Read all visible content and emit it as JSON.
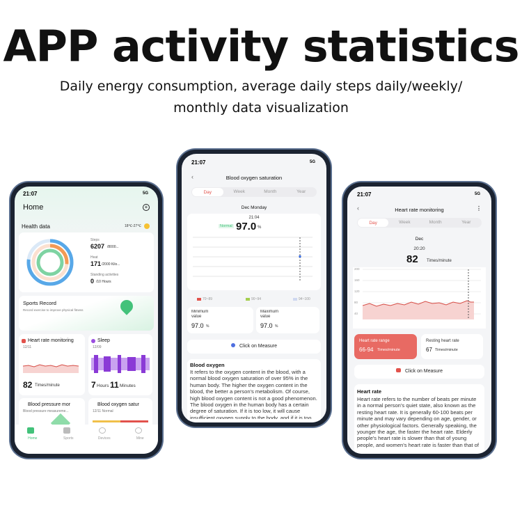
{
  "header": {
    "title": "APP activity statistics",
    "subtitle_lines": [
      "Daily energy consumption, average daily steps daily/weekly/",
      "monthly data visualization"
    ]
  },
  "home": {
    "time": "21:07",
    "network": "5G",
    "title": "Home",
    "section": "Health data",
    "weather": "18℃-27℃",
    "rings": [
      {
        "label": "Steps",
        "value": "6207",
        "goal": "/8000..."
      },
      {
        "label": "Heat",
        "value": "171",
        "goal": "/2000 Kilo..."
      },
      {
        "label": "Standing activities",
        "value": "0",
        "goal": "/10 Hours"
      }
    ],
    "sports_record": {
      "title": "Sports Record",
      "text": "Record exercise to improve physical fitness"
    },
    "heart_card": {
      "title": "Heart rate monitoring",
      "date": "12/11",
      "value": "82",
      "unit": "Times/minute"
    },
    "sleep_card": {
      "title": "Sleep",
      "date": "12/09",
      "hours": "7",
      "hours_unit": "Hours",
      "minutes": "11",
      "minutes_unit": "Minutes"
    },
    "pressure_card": {
      "title": "Blood pressure mor",
      "text": "Blood pressure measureme..."
    },
    "oxygen_card": {
      "title": "Blood oxygen satur",
      "text": "12/11 Normal"
    },
    "tabs": [
      "Home",
      "Sports",
      "Devices",
      "Mine"
    ]
  },
  "oxygen": {
    "time": "21:07",
    "network": "5G",
    "title": "Blood oxygen saturation",
    "tabs": [
      "Day",
      "Week",
      "Month",
      "Year"
    ],
    "date": "Dec Monday",
    "measure_time": "21:04",
    "status": "Normal",
    "value": "97.0",
    "unit": "%",
    "legend": [
      "70~89",
      "90~94",
      "94~100"
    ],
    "minimum": {
      "label": "Minimum value",
      "value": "97.0",
      "unit": "%"
    },
    "maximum": {
      "label": "Maximum value",
      "value": "97.0",
      "unit": "%"
    },
    "button": "Click on Measure",
    "info_title": "Blood oxygen",
    "info_text": "It refers to the oxygen content in the blood, with a normal blood oxygen saturation of over 95% in the human body. The higher the oxygen content in the blood, the better a person's metabolism. Of course, high blood oxygen content is not a good phenomenon. The blood oxygen in the human body has a certain degree of saturation. If it is too low, it will cause insufficient oxygen supply to the body, and if it is too high, it will lead to cell aging in the body."
  },
  "heart": {
    "time": "21:07",
    "network": "5G",
    "title": "Heart rate monitoring",
    "tabs": [
      "Day",
      "Week",
      "Month",
      "Year"
    ],
    "date": "Dec",
    "measure_time": "20:20",
    "value": "82",
    "unit": "Times/minute",
    "yticks": [
      "200",
      "160",
      "120",
      "80",
      "40"
    ],
    "range": {
      "label": "Heart rate range",
      "value": "66-94",
      "unit": "Times/minute"
    },
    "resting": {
      "label": "Resting heart rate",
      "value": "67",
      "unit": "Times/minute"
    },
    "button": "Click on Measure",
    "info_title": "Heart rate",
    "info_text": "Heart rate refers to the number of beats per minute in a normal person's quiet state, also known as the resting heart rate. It is generally 60-100 beats per minute and may vary depending on age, gender, or other physiological factors. Generally speaking, the younger the age, the faster the heart rate. Elderly people's heart rate is slower than that of young people, and women's heart rate is faster than that of men of the same age. Under certain physiological conditions..."
  }
}
